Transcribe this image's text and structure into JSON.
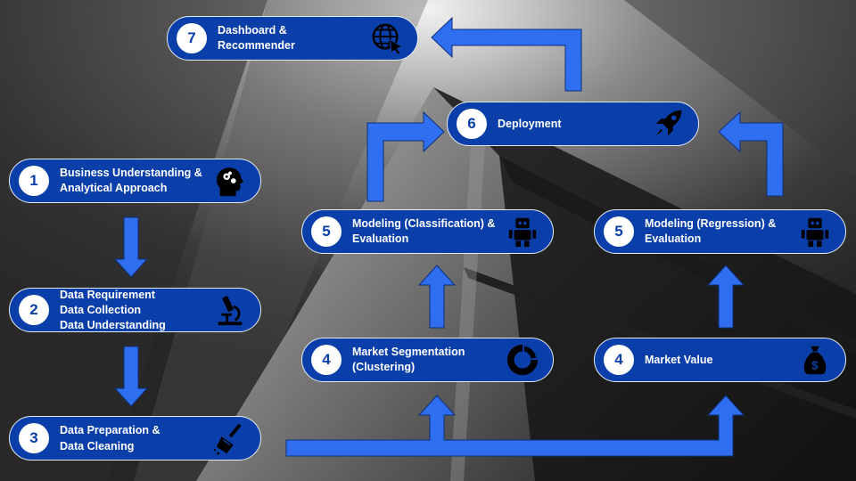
{
  "colors": {
    "box_fill": "#0a3ea8",
    "arrow": "#2f6fef",
    "number_text": "#0a3ea8"
  },
  "steps": [
    {
      "number": "1",
      "label": "Business Understanding &\nAnalytical Approach",
      "icon": "head-gears-icon"
    },
    {
      "number": "2",
      "label": "Data Requirement\nData Collection\nData Understanding",
      "icon": "microscope-icon"
    },
    {
      "number": "3",
      "label": "Data Preparation &\nData Cleaning",
      "icon": "broom-icon"
    },
    {
      "number": "4",
      "label": "Market Segmentation\n(Clustering)",
      "icon": "donut-chart-icon"
    },
    {
      "number": "4",
      "label": "Market Value",
      "icon": "money-bag-icon"
    },
    {
      "number": "5",
      "label": "Modeling (Classification) &\nEvaluation",
      "icon": "robot-icon"
    },
    {
      "number": "5",
      "label": "Modeling (Regression) &\nEvaluation",
      "icon": "robot-icon"
    },
    {
      "number": "6",
      "label": "Deployment",
      "icon": "rocket-icon"
    },
    {
      "number": "7",
      "label": "Dashboard &\nRecommender",
      "icon": "globe-cursor-icon"
    }
  ]
}
